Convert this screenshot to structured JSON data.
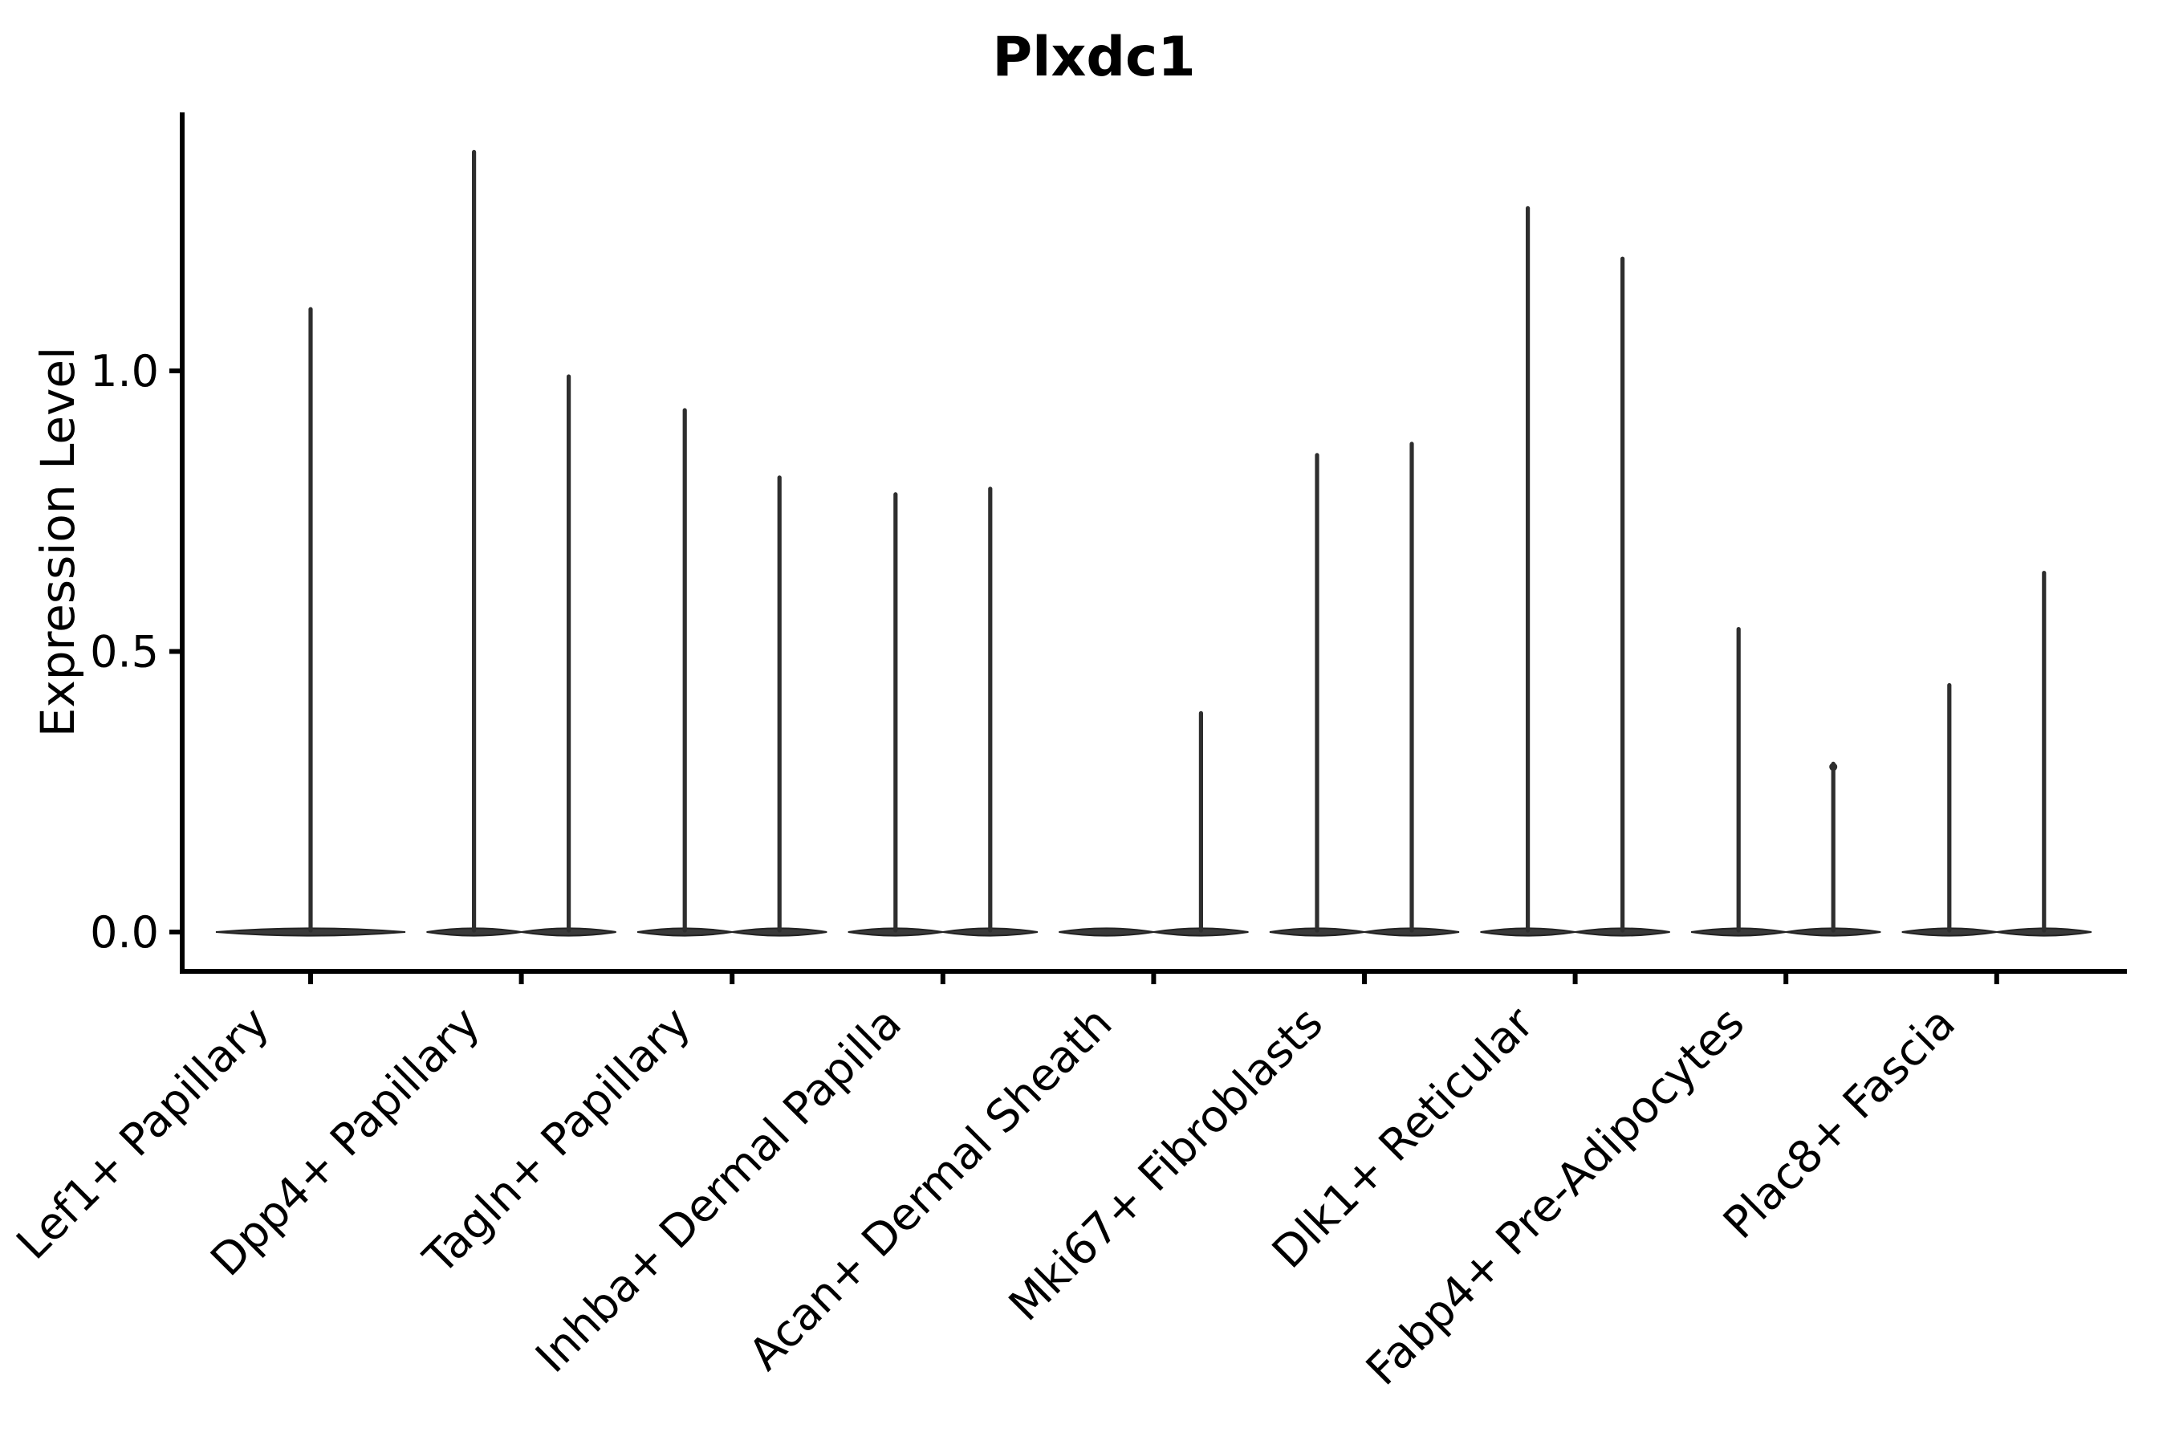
{
  "chart_data": {
    "type": "violin",
    "title": "Plxdc1",
    "ylabel": "Expression Level",
    "xlabel": "",
    "grid": false,
    "legend": "none",
    "yticks": [
      0.0,
      0.5,
      1.0
    ],
    "ytick_labels": [
      "0.0",
      "0.5",
      "1.0"
    ],
    "ylim": [
      -0.07,
      1.46
    ],
    "description": "Grouped violin plot; expression is concentrated at 0 (flat dark bodies) with thin spikes reaching each violin's maximum expression value.",
    "categories": [
      {
        "label": "Lef1+ Papillary",
        "violins": [
          {
            "position": "center",
            "max": 1.11
          }
        ]
      },
      {
        "label": "Dpp4+ Papillary",
        "violins": [
          {
            "position": "left",
            "max": 1.39
          },
          {
            "position": "right",
            "max": 0.99
          }
        ]
      },
      {
        "label": "Tagln+ Papillary",
        "violins": [
          {
            "position": "left",
            "max": 0.93
          },
          {
            "position": "right",
            "max": 0.81
          }
        ]
      },
      {
        "label": "Inhba+ Dermal Papilla",
        "violins": [
          {
            "position": "left",
            "max": 0.78
          },
          {
            "position": "right",
            "max": 0.79
          }
        ]
      },
      {
        "label": "Acan+ Dermal Sheath",
        "violins": [
          {
            "position": "left",
            "max": 0.0
          },
          {
            "position": "right",
            "max": 0.39
          }
        ]
      },
      {
        "label": "Mki67+ Fibroblasts",
        "violins": [
          {
            "position": "left",
            "max": 0.85
          },
          {
            "position": "right",
            "max": 0.87
          }
        ]
      },
      {
        "label": "Dlk1+ Reticular",
        "violins": [
          {
            "position": "left",
            "max": 1.29
          },
          {
            "position": "right",
            "max": 1.2
          }
        ]
      },
      {
        "label": "Fabp4+ Pre-Adipocytes",
        "violins": [
          {
            "position": "left",
            "max": 0.54
          },
          {
            "position": "right",
            "max": 0.3,
            "knob": true
          }
        ]
      },
      {
        "label": "Plac8+ Fascia",
        "violins": [
          {
            "position": "left",
            "max": 0.44
          },
          {
            "position": "right",
            "max": 0.64
          }
        ]
      }
    ],
    "colors": {
      "background": "#ffffff",
      "text": "#000000",
      "axis": "#000000",
      "violin_fill": "#3a3a3a",
      "violin_edge": "#222222",
      "spike": "#2e2e2e"
    }
  }
}
